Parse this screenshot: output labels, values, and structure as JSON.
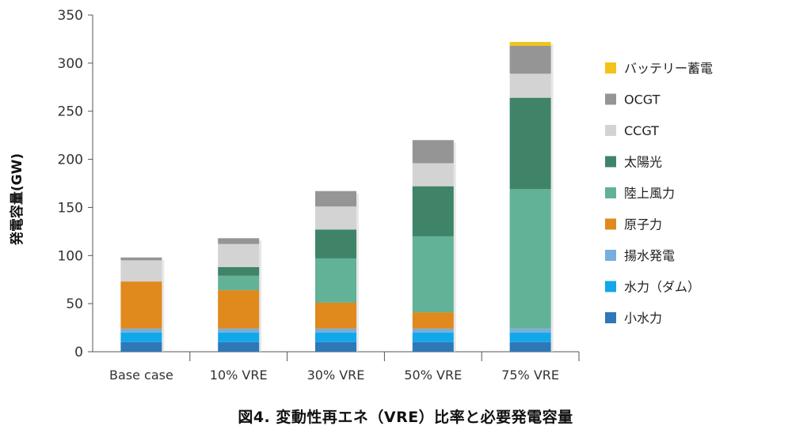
{
  "caption": "図4. 変動性再エネ（VRE）比率と必要発電容量",
  "chart_data": {
    "type": "bar",
    "stacked": true,
    "title": "",
    "xlabel": "",
    "ylabel": "発電容量(GW)",
    "ylim": [
      0,
      350
    ],
    "yticks": [
      0,
      50,
      100,
      150,
      200,
      250,
      300,
      350
    ],
    "grid": false,
    "legend_position": "right",
    "categories": [
      "Base case",
      "10% VRE",
      "30% VRE",
      "50% VRE",
      "75% VRE"
    ],
    "series": [
      {
        "name": "小水力",
        "color": "#2E78B7",
        "values": [
          10,
          10,
          10,
          10,
          10
        ]
      },
      {
        "name": "水力（ダム）",
        "color": "#12A7E8",
        "values": [
          10,
          10,
          10,
          10,
          10
        ]
      },
      {
        "name": "揚水発電",
        "color": "#76AEDE",
        "values": [
          4,
          4,
          4,
          4,
          4
        ]
      },
      {
        "name": "原子力",
        "color": "#E0891C",
        "values": [
          49,
          40,
          27,
          17,
          0
        ]
      },
      {
        "name": "陸上風力",
        "color": "#62B297",
        "values": [
          0,
          15,
          46,
          79,
          145
        ]
      },
      {
        "name": "太陽光",
        "color": "#3F8468",
        "values": [
          0,
          9,
          30,
          52,
          95
        ]
      },
      {
        "name": "CCGT",
        "color": "#D3D3D3",
        "values": [
          22,
          24,
          24,
          24,
          25
        ]
      },
      {
        "name": "OCGT",
        "color": "#959595",
        "values": [
          3,
          6,
          16,
          24,
          29
        ]
      },
      {
        "name": "バッテリー蓄電",
        "color": "#F0C419",
        "values": [
          0,
          0,
          0,
          0,
          4
        ]
      }
    ],
    "legend_order": [
      "バッテリー蓄電",
      "OCGT",
      "CCGT",
      "太陽光",
      "陸上風力",
      "原子力",
      "揚水発電",
      "水力（ダム）",
      "小水力"
    ]
  }
}
